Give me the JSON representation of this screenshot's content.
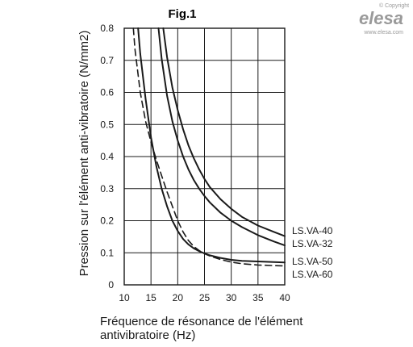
{
  "chart_data": {
    "type": "line",
    "title": "Fig.1",
    "xlabel_line1": "Fréquence de résonance de l'élément",
    "xlabel_line2": "antivibratoire (Hz)",
    "ylabel": "Pression sur l'élément anti-vibratoire (N/mm2)",
    "xlim": [
      10,
      40
    ],
    "ylim": [
      0,
      0.8
    ],
    "grid": true,
    "x_ticks": [
      "10",
      "15",
      "20",
      "25",
      "30",
      "35",
      "40"
    ],
    "y_ticks": [
      "0",
      "0.1",
      "0.2",
      "0.3",
      "0.4",
      "0.5",
      "0.6",
      "0.7",
      "0.8"
    ],
    "series": [
      {
        "name": "LS.VA-40",
        "style": "solid",
        "x": [
          17.3,
          18,
          19,
          20,
          21,
          22,
          23,
          24,
          25,
          26,
          28,
          30,
          32,
          35,
          38,
          40
        ],
        "y": [
          0.8,
          0.71,
          0.615,
          0.545,
          0.485,
          0.435,
          0.395,
          0.36,
          0.33,
          0.305,
          0.267,
          0.237,
          0.212,
          0.185,
          0.165,
          0.152
        ]
      },
      {
        "name": "LS.VA-32",
        "style": "solid",
        "x": [
          16.4,
          17,
          18,
          19,
          20,
          21,
          22,
          23,
          24,
          25,
          26,
          28,
          30,
          32,
          35,
          38,
          40
        ],
        "y": [
          0.8,
          0.705,
          0.59,
          0.51,
          0.45,
          0.4,
          0.36,
          0.327,
          0.3,
          0.277,
          0.257,
          0.225,
          0.2,
          0.18,
          0.155,
          0.135,
          0.123
        ]
      },
      {
        "name": "LS.VA-50",
        "style": "solid",
        "x": [
          12.6,
          13,
          14,
          15,
          16,
          17,
          18,
          19,
          20,
          21,
          22,
          23,
          24,
          25,
          26,
          28,
          30,
          32,
          35,
          38,
          40
        ],
        "y": [
          0.8,
          0.72,
          0.58,
          0.46,
          0.37,
          0.3,
          0.245,
          0.2,
          0.168,
          0.143,
          0.126,
          0.114,
          0.105,
          0.098,
          0.092,
          0.084,
          0.078,
          0.075,
          0.073,
          0.071,
          0.07
        ]
      },
      {
        "name": "LS.VA-60",
        "style": "dashed",
        "x": [
          11.7,
          12,
          13,
          14,
          15,
          16,
          17,
          18,
          19,
          20,
          21,
          22,
          23,
          24,
          25,
          26,
          28,
          30,
          32,
          35,
          38,
          40
        ],
        "y": [
          0.8,
          0.735,
          0.6,
          0.51,
          0.445,
          0.39,
          0.34,
          0.29,
          0.245,
          0.2,
          0.165,
          0.138,
          0.12,
          0.107,
          0.097,
          0.09,
          0.079,
          0.071,
          0.066,
          0.062,
          0.06,
          0.059
        ]
      }
    ]
  },
  "watermark": {
    "copyright": "© Copyright",
    "brand": "elesa",
    "url": "www.elesa.com"
  },
  "colors": {
    "line": "#1a1a1a",
    "grid": "#1a1a1a",
    "logo": "#9a9a9a"
  }
}
